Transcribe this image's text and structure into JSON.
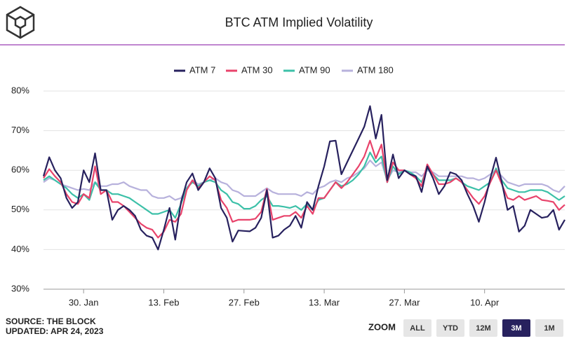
{
  "chart_data": {
    "type": "line",
    "title": "BTC ATM Implied Volatility",
    "categories": [
      null,
      null,
      null,
      null,
      null,
      null,
      null,
      "30. Jan",
      null,
      null,
      null,
      null,
      null,
      null,
      null,
      null,
      null,
      null,
      null,
      null,
      null,
      "13. Feb",
      null,
      null,
      null,
      null,
      null,
      null,
      null,
      null,
      null,
      null,
      null,
      null,
      null,
      "27. Feb",
      null,
      null,
      null,
      null,
      null,
      null,
      null,
      null,
      null,
      null,
      null,
      null,
      null,
      "13. Mar",
      null,
      null,
      null,
      null,
      null,
      null,
      null,
      null,
      null,
      null,
      null,
      null,
      null,
      "27. Mar",
      null,
      null,
      null,
      null,
      null,
      null,
      null,
      null,
      null,
      null,
      null,
      null,
      null,
      "10. Apr",
      null,
      null,
      null,
      null,
      null,
      null,
      null,
      null,
      null,
      null,
      null,
      null,
      null,
      null
    ],
    "series": [
      {
        "name": "ATM 7",
        "color": "#27215e",
        "values": [
          58.5,
          63.3,
          60,
          58,
          53,
          50.5,
          52,
          60,
          57,
          64.3,
          55,
          55,
          47.5,
          50,
          51,
          50,
          48.5,
          45,
          43.5,
          43,
          40,
          45,
          50.5,
          42.5,
          52,
          57,
          59.2,
          55,
          57,
          60.5,
          58,
          50.5,
          48,
          42,
          44.8,
          44.7,
          44.6,
          45.5,
          48,
          55,
          43,
          43.5,
          45,
          46,
          48.5,
          45.5,
          52,
          50,
          56,
          61,
          67.3,
          67.5,
          59,
          62,
          65,
          68,
          71,
          76.2,
          68,
          74,
          57.5,
          64,
          58,
          60,
          59,
          58.5,
          54.5,
          61,
          58,
          54,
          56,
          59.5,
          59,
          57.5,
          54,
          51,
          47,
          52,
          58,
          63.2,
          57,
          50,
          51,
          44.5,
          46,
          50,
          49,
          48,
          48.3,
          50,
          45,
          47.5
        ]
      },
      {
        "name": "ATM 30",
        "color": "#e8436b",
        "values": [
          58,
          60.3,
          58.5,
          57,
          54,
          52,
          51.5,
          54,
          53,
          61,
          54,
          55,
          52,
          52,
          51,
          49.5,
          48,
          46.5,
          45.5,
          45,
          43,
          44.5,
          47.5,
          47,
          49,
          55,
          57.5,
          55.5,
          57,
          58.5,
          57.5,
          52.5,
          50.5,
          47,
          47.5,
          47.5,
          47.5,
          47.8,
          49.5,
          55.3,
          47.5,
          48,
          48.5,
          48.5,
          49.5,
          48,
          51,
          49,
          53,
          53,
          55,
          57,
          55.5,
          57,
          59,
          61,
          63.5,
          67.5,
          63,
          66.5,
          57,
          62,
          60,
          60,
          59,
          58,
          56,
          61.5,
          59,
          56.5,
          56.5,
          57,
          58,
          57,
          55,
          53,
          51.5,
          53.5,
          57,
          60,
          56.5,
          53,
          52.5,
          53.5,
          52.5,
          53,
          53.5,
          52.5,
          52.3,
          52,
          50,
          51.3
        ]
      },
      {
        "name": "ATM 90",
        "color": "#3cc0a8",
        "values": [
          57.5,
          58.5,
          57.5,
          56.5,
          55.5,
          54,
          53,
          54,
          52.5,
          57,
          55,
          55,
          54,
          54,
          53.5,
          53,
          52,
          51,
          50,
          49,
          49,
          49.5,
          50,
          48,
          51.5,
          55.5,
          57,
          56,
          57,
          57.5,
          57,
          55,
          54,
          52,
          51.5,
          50.3,
          50.3,
          51,
          52.5,
          53.5,
          51,
          51,
          50.8,
          50.5,
          51,
          50,
          51.5,
          50,
          52.5,
          53,
          55,
          57,
          56,
          56.5,
          57.5,
          59,
          61,
          64.5,
          62,
          63.5,
          57,
          61,
          59,
          60,
          59.5,
          58.5,
          57,
          60.5,
          59,
          57.5,
          57.5,
          57.5,
          58,
          57,
          56,
          55.5,
          55,
          56,
          57,
          60.5,
          57.5,
          55.5,
          55,
          54.5,
          54.5,
          55,
          55,
          55,
          54.5,
          53.5,
          52.5,
          53.5
        ]
      },
      {
        "name": "ATM 180",
        "color": "#b7b1dc",
        "values": [
          57,
          58,
          57.5,
          56.5,
          56,
          55.5,
          55,
          55.3,
          55,
          57,
          56,
          56,
          56.5,
          56.5,
          57,
          56,
          55.5,
          55,
          55,
          53.5,
          53,
          53,
          53.5,
          52.5,
          53,
          55.5,
          57.5,
          56.5,
          57,
          57.5,
          58,
          57,
          56.5,
          55,
          54.5,
          53.5,
          53.5,
          53.5,
          54.5,
          55.5,
          54.5,
          54,
          54,
          54,
          54,
          53.5,
          54.5,
          54,
          55.5,
          56,
          57,
          57.5,
          57,
          58,
          58.5,
          59.5,
          60.5,
          62.5,
          61,
          62,
          57.5,
          60,
          59.5,
          60,
          59.5,
          59.5,
          58.5,
          60,
          59.5,
          58.5,
          58.5,
          58.5,
          58.5,
          58.5,
          58,
          58,
          57.5,
          58,
          59,
          60,
          58.5,
          57,
          56.5,
          56,
          56.5,
          56.5,
          56.5,
          56.5,
          56,
          55,
          54.5,
          56
        ]
      }
    ],
    "ylim": [
      30,
      80
    ],
    "yticks": [
      {
        "value": 30,
        "label": "30%"
      },
      {
        "value": 40,
        "label": "40%"
      },
      {
        "value": 50,
        "label": "50%"
      },
      {
        "value": 60,
        "label": "60%"
      },
      {
        "value": 70,
        "label": "70%"
      },
      {
        "value": 80,
        "label": "80%"
      }
    ],
    "grid": true,
    "source": "SOURCE: THE BLOCK",
    "updated": "UPDATED: APR 24, 2023",
    "zoom": {
      "label": "ZOOM",
      "options": [
        "ALL",
        "YTD",
        "12M",
        "3M",
        "1M"
      ],
      "active": "3M"
    }
  }
}
